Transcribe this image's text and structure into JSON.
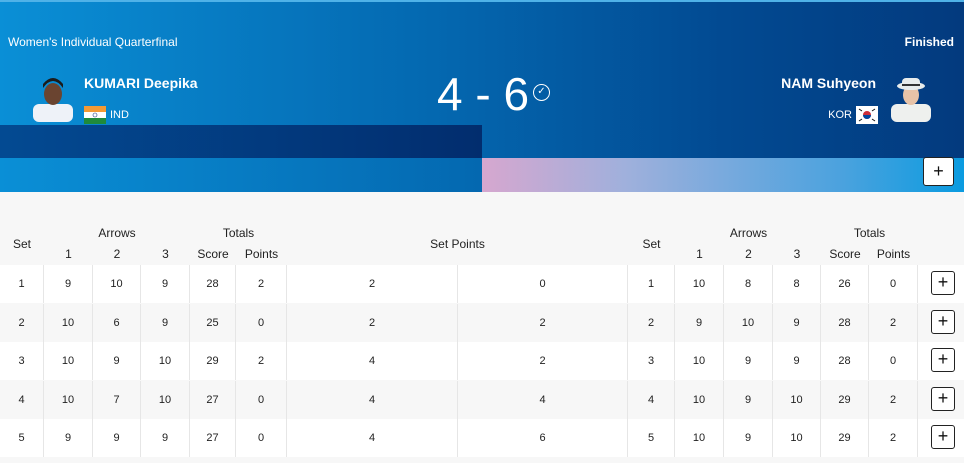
{
  "header": {
    "event": "Women's Individual Quarterfinal",
    "status": "Finished",
    "score": "4 - 6",
    "winner_icon": "check-circle-icon",
    "left": {
      "name": "KUMARI Deepika",
      "noc": "IND"
    },
    "right": {
      "name": "NAM Suhyeon",
      "noc": "KOR"
    },
    "expand_label": "+"
  },
  "table": {
    "headers": {
      "set": "Set",
      "arrows": "Arrows",
      "totals": "Totals",
      "a1": "1",
      "a2": "2",
      "a3": "3",
      "score": "Score",
      "points": "Points",
      "set_points": "Set Points"
    },
    "rows": [
      {
        "set": "1",
        "l": [
          "9",
          "10",
          "9",
          "28",
          "2"
        ],
        "sp": [
          "2",
          "0"
        ],
        "r": [
          "1",
          "10",
          "8",
          "8",
          "26",
          "0"
        ]
      },
      {
        "set": "2",
        "l": [
          "10",
          "6",
          "9",
          "25",
          "0"
        ],
        "sp": [
          "2",
          "2"
        ],
        "r": [
          "2",
          "9",
          "10",
          "9",
          "28",
          "2"
        ]
      },
      {
        "set": "3",
        "l": [
          "10",
          "9",
          "10",
          "29",
          "2"
        ],
        "sp": [
          "4",
          "2"
        ],
        "r": [
          "3",
          "10",
          "9",
          "9",
          "28",
          "0"
        ]
      },
      {
        "set": "4",
        "l": [
          "10",
          "7",
          "10",
          "27",
          "0"
        ],
        "sp": [
          "4",
          "4"
        ],
        "r": [
          "4",
          "10",
          "9",
          "10",
          "29",
          "2"
        ]
      },
      {
        "set": "5",
        "l": [
          "9",
          "9",
          "9",
          "27",
          "0"
        ],
        "sp": [
          "4",
          "6"
        ],
        "r": [
          "5",
          "10",
          "9",
          "10",
          "29",
          "2"
        ]
      }
    ],
    "expand_label": "+"
  }
}
